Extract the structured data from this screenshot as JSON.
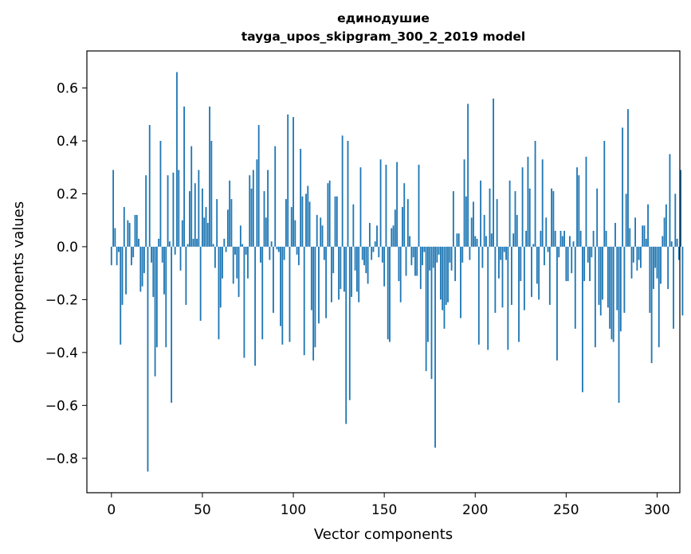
{
  "chart_data": {
    "type": "bar",
    "title_line1": "единодушие",
    "title_line2": "tayga_upos_skipgram_300_2_2019 model",
    "xlabel": "Vector components",
    "ylabel": "Components values",
    "xlim": [
      -13.5,
      312.5
    ],
    "ylim": [
      -0.93,
      0.74
    ],
    "xticks": [
      0,
      50,
      100,
      150,
      200,
      250,
      300
    ],
    "yticks": [
      -0.8,
      -0.6,
      -0.4,
      -0.2,
      0.0,
      0.2,
      0.4,
      0.6
    ],
    "ytick_labels": [
      "−0.8",
      "−0.6",
      "−0.4",
      "−0.2",
      "0.0",
      "0.2",
      "0.4",
      "0.6"
    ],
    "bar_color": "#1f77b4",
    "values": [
      -0.07,
      0.29,
      0.07,
      -0.07,
      -0.02,
      -0.37,
      -0.22,
      0.15,
      -0.18,
      0.1,
      0.09,
      -0.07,
      -0.04,
      0.12,
      0.12,
      0.03,
      -0.17,
      -0.15,
      -0.1,
      0.27,
      -0.85,
      0.46,
      -0.06,
      -0.19,
      -0.49,
      -0.38,
      0.03,
      0.4,
      -0.06,
      -0.18,
      -0.38,
      0.27,
      0.02,
      -0.59,
      0.28,
      -0.03,
      0.66,
      0.29,
      -0.09,
      0.1,
      0.53,
      -0.22,
      0.01,
      0.21,
      0.38,
      0.03,
      0.24,
      0.03,
      0.29,
      -0.28,
      0.22,
      0.11,
      0.15,
      0.09,
      0.53,
      0.4,
      0.01,
      -0.08,
      0.18,
      -0.35,
      -0.23,
      -0.12,
      0.03,
      -0.02,
      0.14,
      0.25,
      0.18,
      -0.14,
      -0.03,
      -0.12,
      -0.19,
      0.08,
      0.01,
      -0.42,
      -0.03,
      -0.12,
      0.27,
      0.22,
      0.29,
      -0.45,
      0.33,
      0.46,
      -0.06,
      -0.35,
      0.21,
      0.11,
      0.29,
      -0.05,
      0.02,
      -0.25,
      0.38,
      -0.01,
      -0.02,
      -0.3,
      -0.37,
      -0.05,
      0.18,
      0.5,
      -0.36,
      0.15,
      0.49,
      0.1,
      -0.03,
      -0.07,
      0.37,
      0.19,
      -0.41,
      0.2,
      0.23,
      0.17,
      -0.24,
      -0.43,
      -0.38,
      0.12,
      -0.29,
      0.11,
      0.08,
      -0.05,
      -0.27,
      0.24,
      0.25,
      -0.21,
      -0.1,
      0.19,
      0.19,
      -0.2,
      -0.16,
      0.42,
      -0.17,
      -0.67,
      0.4,
      -0.58,
      -0.19,
      0.16,
      -0.09,
      -0.17,
      -0.21,
      0.3,
      -0.05,
      -0.07,
      -0.1,
      -0.14,
      0.09,
      -0.05,
      -0.02,
      0.02,
      0.08,
      -0.04,
      0.33,
      -0.06,
      -0.15,
      0.31,
      -0.35,
      -0.36,
      0.07,
      0.08,
      0.14,
      0.32,
      -0.13,
      -0.21,
      0.15,
      0.24,
      -0.11,
      0.18,
      0.04,
      -0.07,
      -0.04,
      -0.11,
      -0.11,
      0.31,
      -0.16,
      -0.07,
      -0.02,
      -0.47,
      -0.36,
      -0.09,
      -0.5,
      -0.08,
      -0.76,
      -0.06,
      -0.03,
      -0.2,
      -0.24,
      -0.31,
      -0.22,
      -0.21,
      -0.06,
      -0.09,
      0.21,
      -0.13,
      0.05,
      0.05,
      -0.27,
      -0.06,
      0.33,
      0.19,
      0.54,
      -0.05,
      0.11,
      0.17,
      0.04,
      0.03,
      -0.37,
      0.25,
      -0.08,
      0.12,
      0.04,
      -0.39,
      0.22,
      0.05,
      0.56,
      -0.25,
      0.18,
      -0.12,
      -0.05,
      -0.23,
      -0.02,
      -0.05,
      -0.39,
      0.25,
      -0.22,
      0.05,
      0.21,
      0.12,
      -0.36,
      -0.13,
      0.3,
      -0.24,
      0.06,
      0.34,
      0.22,
      -0.19,
      0.01,
      0.4,
      -0.14,
      -0.2,
      0.06,
      0.33,
      -0.07,
      0.11,
      -0.02,
      -0.22,
      0.22,
      0.21,
      0.06,
      -0.43,
      -0.04,
      0.06,
      0.04,
      0.06,
      -0.13,
      -0.13,
      0.04,
      -0.1,
      0.02,
      -0.31,
      0.3,
      0.27,
      0.06,
      -0.55,
      -0.13,
      0.34,
      -0.06,
      -0.13,
      -0.04,
      0.06,
      -0.38,
      0.22,
      -0.22,
      -0.26,
      -0.2,
      0.4,
      0.06,
      -0.23,
      -0.31,
      -0.35,
      -0.36,
      0.09,
      -0.24,
      -0.59,
      -0.32,
      0.45,
      -0.25,
      0.2,
      0.52,
      0.07,
      -0.12,
      -0.06,
      0.11,
      -0.09,
      -0.05,
      -0.08,
      0.08,
      0.08,
      0.03,
      0.16,
      -0.25,
      -0.44,
      -0.16,
      -0.08,
      -0.12,
      -0.38,
      -0.14,
      0.04,
      0.11,
      0.16,
      -0.16,
      0.35,
      0.02,
      -0.31,
      0.2,
      0.03,
      -0.05,
      0.29,
      -0.26
    ]
  }
}
